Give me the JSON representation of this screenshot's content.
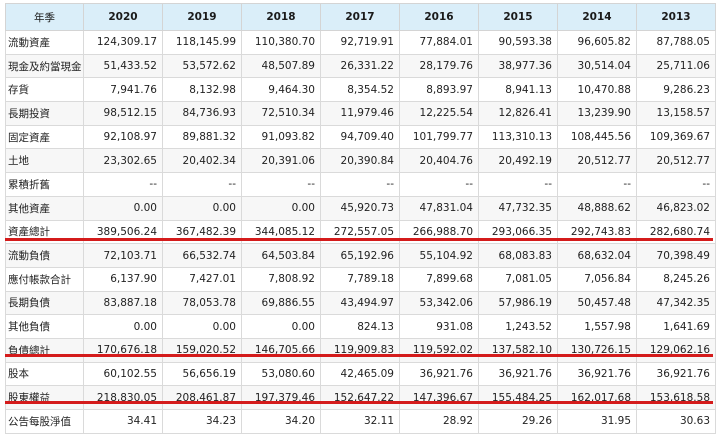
{
  "table": {
    "corner": "年季",
    "years": [
      "2020",
      "2019",
      "2018",
      "2017",
      "2016",
      "2015",
      "2014",
      "2013"
    ],
    "rows": [
      {
        "label": "流動資產",
        "values": [
          "124,309.17",
          "118,145.99",
          "110,380.70",
          "92,719.91",
          "77,884.01",
          "90,593.38",
          "96,605.82",
          "87,788.05"
        ]
      },
      {
        "label": "現金及約當現金",
        "values": [
          "51,433.52",
          "53,572.62",
          "48,507.89",
          "26,331.22",
          "28,179.76",
          "38,977.36",
          "30,514.04",
          "25,711.06"
        ]
      },
      {
        "label": "存貨",
        "values": [
          "7,941.76",
          "8,132.98",
          "9,464.30",
          "8,354.52",
          "8,893.97",
          "8,941.13",
          "10,470.88",
          "9,286.23"
        ]
      },
      {
        "label": "長期投資",
        "values": [
          "98,512.15",
          "84,736.93",
          "72,510.34",
          "11,979.46",
          "12,225.54",
          "12,826.41",
          "13,239.90",
          "13,158.57"
        ]
      },
      {
        "label": "固定資產",
        "values": [
          "92,108.97",
          "89,881.32",
          "91,093.82",
          "94,709.40",
          "101,799.77",
          "113,310.13",
          "108,445.56",
          "109,369.67"
        ]
      },
      {
        "label": "土地",
        "values": [
          "23,302.65",
          "20,402.34",
          "20,391.06",
          "20,390.84",
          "20,404.76",
          "20,492.19",
          "20,512.77",
          "20,512.77"
        ]
      },
      {
        "label": "累積折舊",
        "values": [
          "--",
          "--",
          "--",
          "--",
          "--",
          "--",
          "--",
          "--"
        ]
      },
      {
        "label": "其他資產",
        "values": [
          "0.00",
          "0.00",
          "0.00",
          "45,920.73",
          "47,831.04",
          "47,732.35",
          "48,888.62",
          "46,823.02"
        ]
      },
      {
        "label": "資產總計",
        "values": [
          "389,506.24",
          "367,482.39",
          "344,085.12",
          "272,557.05",
          "266,988.70",
          "293,066.35",
          "292,743.83",
          "282,680.74"
        ]
      },
      {
        "label": "流動負債",
        "values": [
          "72,103.71",
          "66,532.74",
          "64,503.84",
          "65,192.96",
          "55,104.92",
          "68,083.83",
          "68,632.04",
          "70,398.49"
        ]
      },
      {
        "label": "應付帳款合計",
        "values": [
          "6,137.90",
          "7,427.01",
          "7,808.92",
          "7,789.18",
          "7,899.68",
          "7,081.05",
          "7,056.84",
          "8,245.26"
        ]
      },
      {
        "label": "長期負債",
        "values": [
          "83,887.18",
          "78,053.78",
          "69,886.55",
          "43,494.97",
          "53,342.06",
          "57,986.19",
          "50,457.48",
          "47,342.35"
        ]
      },
      {
        "label": "其他負債",
        "values": [
          "0.00",
          "0.00",
          "0.00",
          "824.13",
          "931.08",
          "1,243.52",
          "1,557.98",
          "1,641.69"
        ]
      },
      {
        "label": "負債總計",
        "values": [
          "170,676.18",
          "159,020.52",
          "146,705.66",
          "119,909.83",
          "119,592.02",
          "137,582.10",
          "130,726.15",
          "129,062.16"
        ]
      },
      {
        "label": "股本",
        "values": [
          "60,102.55",
          "56,656.19",
          "53,080.60",
          "42,465.09",
          "36,921.76",
          "36,921.76",
          "36,921.76",
          "36,921.76"
        ]
      },
      {
        "label": "股東權益",
        "values": [
          "218,830.05",
          "208,461.87",
          "197,379.46",
          "152,647.22",
          "147,396.67",
          "155,484.25",
          "162,017.68",
          "153,618.58"
        ]
      },
      {
        "label": "公告每股淨值",
        "values": [
          "34.41",
          "34.23",
          "34.20",
          "32.11",
          "28.92",
          "29.26",
          "31.95",
          "30.63"
        ]
      }
    ]
  },
  "highlight_color": "#d41b1b"
}
